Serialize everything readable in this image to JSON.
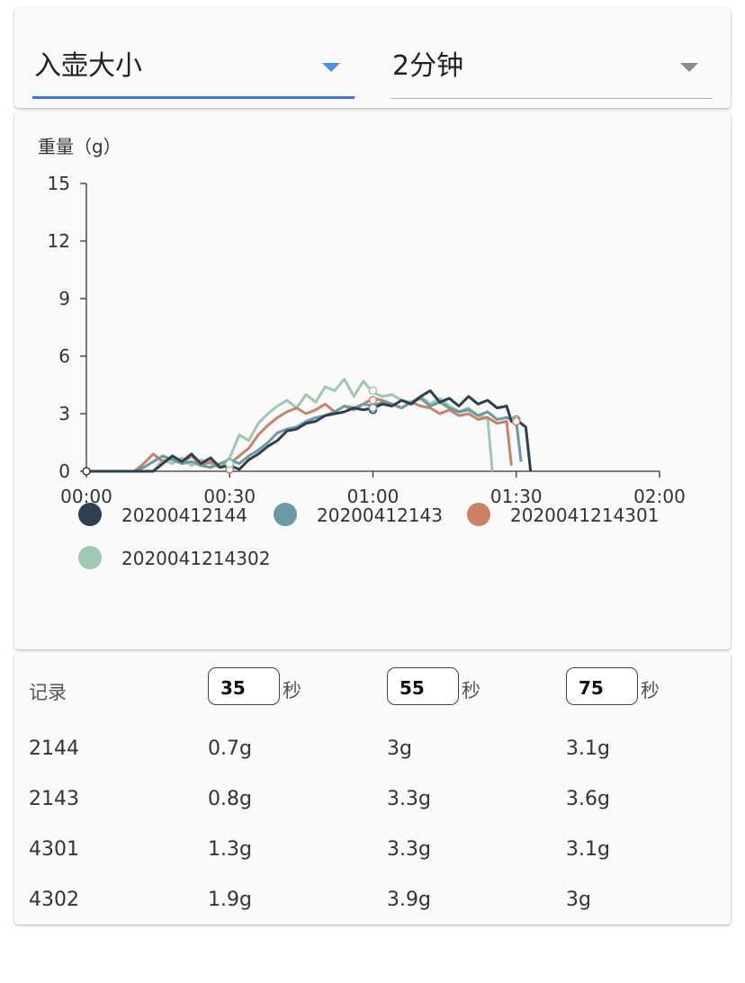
{
  "selectors": {
    "metric": {
      "value": "入壶大小"
    },
    "duration": {
      "value": "2分钟"
    }
  },
  "colors": {
    "accent": "#3b78d8",
    "series": [
      "#2e3f4f",
      "#6a9aa5",
      "#cc8066",
      "#9cc9b0"
    ]
  },
  "chart_data": {
    "type": "line",
    "ylabel": "重量（g）",
    "xlabel": "",
    "ylim": [
      0,
      15
    ],
    "xlim": [
      0,
      120
    ],
    "yticks": [
      "0",
      "3",
      "6",
      "9",
      "12",
      "15"
    ],
    "xticks": [
      "00:00",
      "00:30",
      "01:00",
      "01:30",
      "02:00"
    ],
    "legend_position": "bottom",
    "series": [
      {
        "name": "20200412144",
        "x": [
          0,
          5,
          10,
          14,
          16,
          18,
          20,
          22,
          24,
          26,
          28,
          30,
          32,
          34,
          36,
          38,
          40,
          42,
          44,
          46,
          48,
          50,
          52,
          54,
          56,
          58,
          60,
          62,
          64,
          66,
          68,
          70,
          72,
          74,
          76,
          78,
          80,
          82,
          84,
          86,
          88,
          89,
          90,
          92,
          93
        ],
        "values": [
          0,
          0,
          0,
          0,
          0.4,
          0.8,
          0.5,
          0.9,
          0.4,
          0.7,
          0.2,
          0.3,
          0.1,
          0.6,
          0.9,
          1.3,
          1.6,
          2.1,
          2.2,
          2.5,
          2.6,
          2.9,
          3.0,
          3.1,
          3.3,
          3.2,
          3.3,
          3.5,
          3.4,
          3.7,
          3.5,
          3.9,
          4.2,
          3.6,
          3.8,
          3.4,
          3.9,
          3.5,
          3.7,
          3.3,
          3.4,
          2.6,
          2.7,
          2.3,
          0
        ]
      },
      {
        "name": "20200412143",
        "x": [
          0,
          5,
          10,
          12,
          14,
          16,
          18,
          20,
          22,
          24,
          26,
          28,
          30,
          32,
          34,
          36,
          38,
          40,
          42,
          44,
          46,
          48,
          50,
          52,
          54,
          56,
          58,
          60,
          62,
          64,
          66,
          68,
          70,
          72,
          74,
          76,
          78,
          80,
          82,
          84,
          86,
          88,
          90,
          91
        ],
        "values": [
          0,
          0,
          0,
          0.2,
          0.5,
          0.8,
          0.6,
          0.4,
          0.5,
          0.3,
          0.2,
          0.4,
          0.6,
          0.4,
          0.8,
          1.1,
          1.5,
          2.0,
          2.2,
          2.3,
          2.6,
          2.8,
          2.9,
          3.1,
          3.4,
          3.3,
          3.5,
          3.4,
          3.6,
          3.5,
          3.3,
          3.6,
          3.8,
          3.4,
          3.6,
          3.3,
          3.1,
          3.2,
          2.9,
          3.1,
          2.7,
          2.8,
          2.6,
          0.5
        ]
      },
      {
        "name": "2020041214301",
        "x": [
          0,
          5,
          10,
          12,
          14,
          16,
          18,
          20,
          22,
          24,
          26,
          28,
          30,
          32,
          34,
          36,
          38,
          40,
          42,
          44,
          46,
          48,
          50,
          52,
          54,
          56,
          58,
          60,
          62,
          64,
          66,
          68,
          70,
          72,
          74,
          76,
          78,
          80,
          82,
          84,
          86,
          88,
          89
        ],
        "values": [
          0,
          0,
          0,
          0.4,
          0.9,
          0.5,
          0.7,
          0.4,
          0.8,
          0.3,
          0.5,
          0.2,
          0.4,
          0.8,
          1.2,
          1.9,
          2.4,
          2.8,
          3.1,
          3.3,
          3.0,
          3.2,
          3.5,
          3.1,
          3.4,
          3.2,
          3.5,
          3.8,
          3.7,
          3.5,
          3.3,
          3.6,
          3.4,
          3.3,
          3.0,
          3.2,
          2.9,
          3.0,
          2.7,
          2.8,
          2.5,
          2.6,
          0.3
        ]
      },
      {
        "name": "2020041214302",
        "x": [
          0,
          5,
          10,
          14,
          16,
          18,
          20,
          22,
          24,
          26,
          28,
          30,
          32,
          34,
          36,
          38,
          40,
          42,
          44,
          46,
          48,
          50,
          52,
          54,
          56,
          58,
          60,
          62,
          64,
          66,
          68,
          70,
          72,
          74,
          76,
          78,
          80,
          82,
          84,
          85
        ],
        "values": [
          0,
          0,
          0,
          0,
          0.6,
          0.4,
          0.7,
          0.3,
          0.6,
          0.4,
          0.2,
          0.7,
          1.9,
          1.6,
          2.5,
          3.0,
          3.4,
          3.7,
          3.3,
          4.0,
          3.6,
          4.4,
          4.2,
          4.8,
          3.9,
          4.7,
          4.1,
          3.9,
          4.0,
          3.7,
          3.6,
          3.9,
          3.5,
          3.8,
          3.4,
          3.1,
          3.3,
          2.9,
          2.8,
          0
        ]
      }
    ],
    "markers": [
      {
        "series": 0,
        "x": [
          0,
          30,
          60,
          90
        ],
        "values": [
          0,
          0.1,
          3.2,
          2.6
        ]
      },
      {
        "series": 1,
        "x": [
          30,
          60,
          90
        ],
        "values": [
          0.3,
          3.3,
          2.7
        ]
      },
      {
        "series": 2,
        "x": [
          30,
          60,
          90
        ],
        "values": [
          0.1,
          3.7,
          2.6
        ]
      },
      {
        "series": 3,
        "x": [
          30,
          60
        ],
        "values": [
          0.4,
          4.2
        ]
      }
    ]
  },
  "table": {
    "header_label": "记录",
    "time_inputs": [
      "35",
      "55",
      "75"
    ],
    "unit": "秒",
    "rows": [
      [
        "2144",
        "0.7g",
        "3g",
        "3.1g"
      ],
      [
        "2143",
        "0.8g",
        "3.3g",
        "3.6g"
      ],
      [
        "4301",
        "1.3g",
        "3.3g",
        "3.1g"
      ],
      [
        "4302",
        "1.9g",
        "3.9g",
        "3g"
      ]
    ]
  }
}
